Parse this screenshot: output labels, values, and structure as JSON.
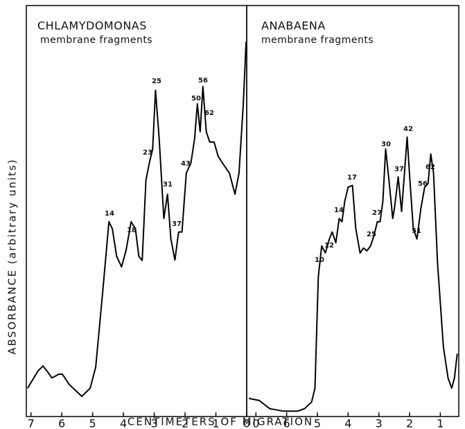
{
  "chart_data": [
    {
      "type": "line",
      "title": "CHLAMYDOMONAS",
      "subtitle": "membrane fragments",
      "xlabel": "CENTIMETERS OF MIGRATION",
      "ylabel": "ABSORBANCE (arbitrary units)",
      "color": "#000000",
      "xlim": [
        7.15,
        0
      ],
      "ylim": [
        0,
        100
      ],
      "xticks": [
        7,
        6,
        5,
        4,
        3,
        2,
        1,
        0
      ],
      "x": [
        7.11,
        6.77,
        6.61,
        6.48,
        6.32,
        6.09,
        5.98,
        5.76,
        5.35,
        5.08,
        4.9,
        4.67,
        4.47,
        4.36,
        4.22,
        4.06,
        3.91,
        3.75,
        3.61,
        3.5,
        3.39,
        3.27,
        3.16,
        3.05,
        2.96,
        2.84,
        2.69,
        2.57,
        2.46,
        2.33,
        2.21,
        2.1,
        1.96,
        1.81,
        1.69,
        1.6,
        1.51,
        1.42,
        1.31,
        1.2,
        1.06,
        0.93,
        0.79,
        0.56,
        0.38,
        0.25,
        0.11,
        0.02
      ],
      "values": [
        6.9,
        11.1,
        12.3,
        11.1,
        9.4,
        10.3,
        10.3,
        7.8,
        4.9,
        6.9,
        12,
        30.5,
        47.4,
        45.7,
        39,
        36.4,
        40.6,
        47.4,
        45.7,
        39,
        38,
        57.5,
        61.7,
        65.1,
        79.4,
        67.6,
        48.2,
        54.1,
        43.2,
        38.1,
        44.9,
        44.9,
        59.2,
        61.7,
        67.6,
        76.1,
        69.3,
        80.3,
        69.3,
        66.8,
        66.8,
        63.4,
        61.7,
        59.2,
        54.1,
        59.2,
        76.1,
        91.2
      ],
      "annotations": [
        "14",
        "18",
        "23",
        "25",
        "31",
        "37",
        "43",
        "50",
        "56",
        "62"
      ]
    },
    {
      "type": "line",
      "title": "ANABAENA",
      "subtitle": "membrane fragments",
      "color": "#000000",
      "xlim": [
        7.3,
        0.4
      ],
      "ylim": [
        0,
        100
      ],
      "xticks": [
        {
          "value": 7,
          "label": "0"
        },
        6,
        5,
        4,
        3,
        2,
        1
      ],
      "x": [
        7.23,
        6.89,
        6.55,
        6.1,
        5.65,
        5.42,
        5.19,
        5.08,
        4.97,
        4.86,
        4.74,
        4.61,
        4.52,
        4.4,
        4.29,
        4.2,
        4.11,
        4,
        3.86,
        3.75,
        3.61,
        3.5,
        3.39,
        3.27,
        3.16,
        3.05,
        2.96,
        2.87,
        2.78,
        2.67,
        2.55,
        2.49,
        2.37,
        2.26,
        2.15,
        2.08,
        1.99,
        1.88,
        1.76,
        1.63,
        1.51,
        1.4,
        1.31,
        1.22,
        1.09,
        0.9,
        0.75,
        0.63,
        0.54,
        0.45
      ],
      "values": [
        4.4,
        3.9,
        1.9,
        1.3,
        1.3,
        1.9,
        3.5,
        6.9,
        33.9,
        41.5,
        39.8,
        43.2,
        44.9,
        42.3,
        48.2,
        47.4,
        52.4,
        55.8,
        56.2,
        45.7,
        39.8,
        41,
        40.3,
        41.5,
        44,
        47.4,
        47.4,
        52.4,
        65.1,
        57.5,
        48.2,
        50.8,
        58.3,
        49.9,
        60.9,
        68,
        57.5,
        45.7,
        43.2,
        50.8,
        55.8,
        56.7,
        63.9,
        59.2,
        37.3,
        17,
        9.4,
        6.9,
        9.4,
        15.3
      ],
      "annotations": [
        "10",
        "12",
        "14",
        "17",
        "25",
        "27",
        "30",
        "37",
        "42",
        "51",
        "56",
        "62"
      ]
    }
  ]
}
